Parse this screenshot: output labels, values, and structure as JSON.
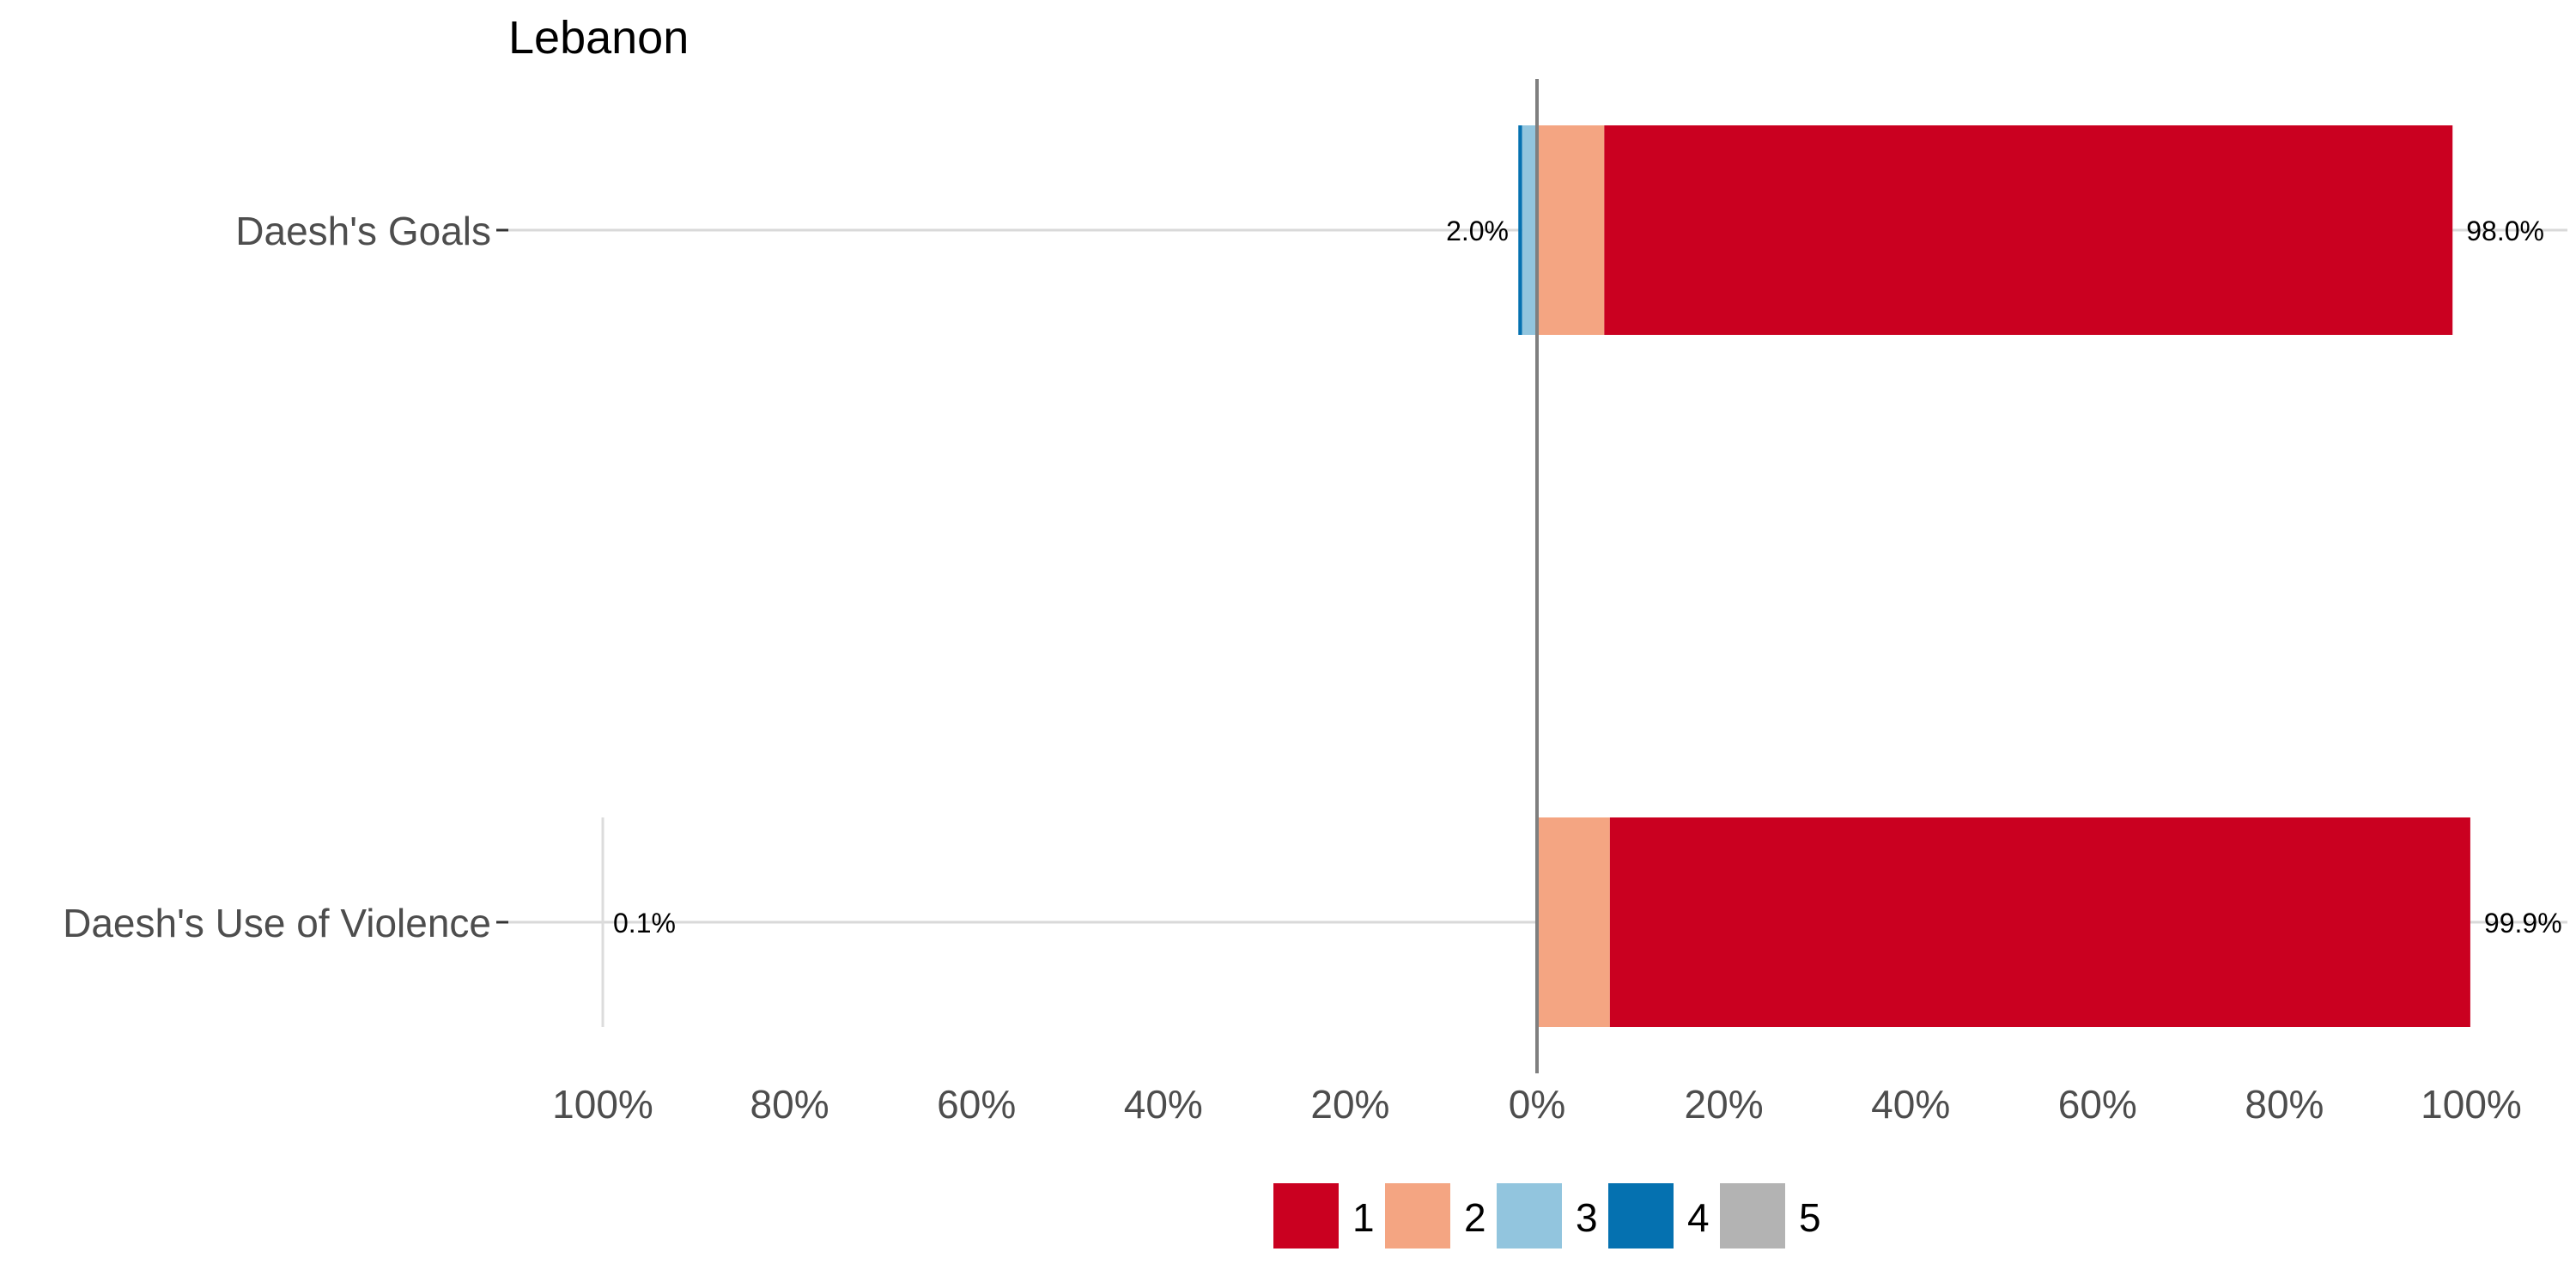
{
  "chart_data": {
    "type": "bar",
    "title": "Lebanon",
    "xlabel": "",
    "ylabel": "",
    "orientation": "horizontal-diverging",
    "xlim": [
      -100,
      100
    ],
    "x_ticks": [
      "100%",
      "80%",
      "60%",
      "40%",
      "20%",
      "0%",
      "20%",
      "40%",
      "60%",
      "80%",
      "100%"
    ],
    "categories": [
      "Daesh's Goals",
      "Daesh's Use of Violence"
    ],
    "series": [
      {
        "name": "1",
        "color": "#CA0020",
        "values": [
          90.8,
          92.1
        ]
      },
      {
        "name": "2",
        "color": "#F4A582",
        "values": [
          7.2,
          7.8
        ]
      },
      {
        "name": "3",
        "color": "#92C5DE",
        "values": [
          1.6,
          0.0
        ]
      },
      {
        "name": "4",
        "color": "#0571B0",
        "values": [
          0.4,
          0.0
        ]
      },
      {
        "name": "5",
        "color": "#B3B3B3",
        "values": [
          0.0,
          0.1
        ]
      }
    ],
    "low_labels": [
      "2.0%",
      "0.1%"
    ],
    "high_labels": [
      "98.0%",
      "99.9%"
    ],
    "legend": {
      "position": "bottom",
      "items": [
        "1",
        "2",
        "3",
        "4",
        "5"
      ]
    },
    "grid": false
  }
}
